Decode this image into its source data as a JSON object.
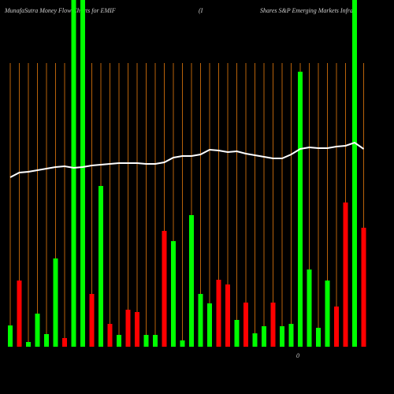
{
  "chart_data": {
    "type": "bar",
    "title": "MunafaSutra  Money Flow  Charts for EMIF",
    "subtitle": "(I",
    "title_right": "Shares S&P Emerging Markets Infra",
    "annotation": "0",
    "ylim": [
      0,
      440
    ],
    "grid": true,
    "grid_color": "#b8620a",
    "line_color": "#ffffff",
    "values": [
      27,
      84,
      6,
      42,
      16,
      112,
      11,
      440,
      440,
      67,
      204,
      29,
      15,
      47,
      44,
      15,
      15,
      147,
      134,
      8,
      167,
      67,
      55,
      85,
      79,
      34,
      56,
      17,
      26,
      56,
      26,
      29,
      349,
      98,
      24,
      84,
      51,
      183,
      440,
      151
    ],
    "colors": [
      "#00ff00",
      "#ff0000",
      "#00ff00",
      "#00ff00",
      "#00ff00",
      "#00ff00",
      "#ff0000",
      "#00ff00",
      "#00ff00",
      "#ff0000",
      "#00ff00",
      "#ff0000",
      "#00ff00",
      "#ff0000",
      "#ff0000",
      "#00ff00",
      "#00ff00",
      "#ff0000",
      "#00ff00",
      "#00ff00",
      "#00ff00",
      "#00ff00",
      "#00ff00",
      "#ff0000",
      "#ff0000",
      "#00ff00",
      "#ff0000",
      "#00ff00",
      "#00ff00",
      "#ff0000",
      "#00ff00",
      "#00ff00",
      "#00ff00",
      "#00ff00",
      "#00ff00",
      "#00ff00",
      "#ff0000",
      "#ff0000",
      "#00ff00",
      "#ff0000"
    ],
    "line_values": [
      215,
      221,
      222,
      224,
      226,
      228,
      229,
      227,
      228,
      230,
      231,
      232,
      233,
      233,
      233,
      232,
      232,
      234,
      240,
      242,
      242,
      244,
      250,
      249,
      247,
      248,
      245,
      243,
      241,
      239,
      239,
      244,
      251,
      253,
      252,
      252,
      254,
      255,
      259,
      251
    ]
  }
}
